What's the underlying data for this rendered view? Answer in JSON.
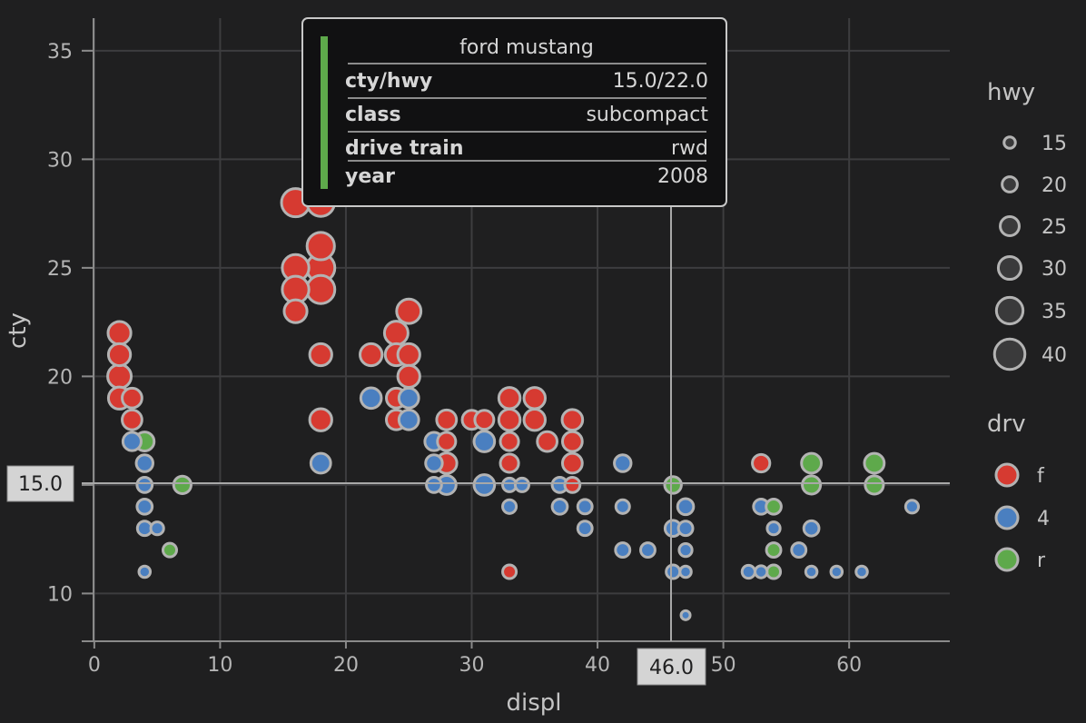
{
  "colors": {
    "f": "#d63a31",
    "4": "#4a7fc0",
    "r": "#5ea94b",
    "outline": "#b3b3b3",
    "grid": "#3d3d3f",
    "background": "#1f1f20"
  },
  "chart_data": {
    "type": "scatter",
    "xlabel": "displ",
    "ylabel": "cty",
    "xlim": [
      -1,
      68
    ],
    "ylim": [
      7.8,
      36.5
    ],
    "x_ticks": [
      0,
      10,
      20,
      30,
      40,
      50,
      60
    ],
    "y_ticks": [
      10,
      15,
      20,
      25,
      30,
      35
    ],
    "grid": true,
    "legend_position": "right",
    "size_legend": {
      "title": "hwy",
      "values": [
        15,
        20,
        25,
        30,
        35,
        40
      ]
    },
    "color_legend": {
      "title": "drv",
      "values": [
        "f",
        "4",
        "r"
      ]
    },
    "points": [
      {
        "x": 2,
        "y": 22,
        "hwy": 30,
        "drv": "f"
      },
      {
        "x": 2,
        "y": 21,
        "hwy": 29,
        "drv": "f"
      },
      {
        "x": 2,
        "y": 20,
        "hwy": 31,
        "drv": "f"
      },
      {
        "x": 2,
        "y": 19,
        "hwy": 29,
        "drv": "f"
      },
      {
        "x": 3,
        "y": 19,
        "hwy": 26,
        "drv": "f"
      },
      {
        "x": 3,
        "y": 18,
        "hwy": 26,
        "drv": "f"
      },
      {
        "x": 3,
        "y": 17,
        "hwy": 24,
        "drv": "4"
      },
      {
        "x": 4,
        "y": 17,
        "hwy": 25,
        "drv": "r"
      },
      {
        "x": 4,
        "y": 16,
        "hwy": 22,
        "drv": "4"
      },
      {
        "x": 4,
        "y": 15,
        "hwy": 20,
        "drv": "4"
      },
      {
        "x": 4,
        "y": 14,
        "hwy": 20,
        "drv": "4"
      },
      {
        "x": 4,
        "y": 13,
        "hwy": 19,
        "drv": "4"
      },
      {
        "x": 4,
        "y": 11,
        "hwy": 15,
        "drv": "4"
      },
      {
        "x": 5,
        "y": 13,
        "hwy": 17,
        "drv": "4"
      },
      {
        "x": 6,
        "y": 12,
        "hwy": 18,
        "drv": "r"
      },
      {
        "x": 7,
        "y": 15,
        "hwy": 23,
        "drv": "r"
      },
      {
        "x": 16,
        "y": 28,
        "hwy": 37,
        "drv": "f"
      },
      {
        "x": 16,
        "y": 25,
        "hwy": 35,
        "drv": "f"
      },
      {
        "x": 16,
        "y": 24,
        "hwy": 35,
        "drv": "f"
      },
      {
        "x": 16,
        "y": 23,
        "hwy": 30,
        "drv": "f"
      },
      {
        "x": 18,
        "y": 28,
        "hwy": 36,
        "drv": "f"
      },
      {
        "x": 18,
        "y": 26,
        "hwy": 36,
        "drv": "f"
      },
      {
        "x": 18,
        "y": 25,
        "hwy": 37,
        "drv": "f"
      },
      {
        "x": 18,
        "y": 24,
        "hwy": 37,
        "drv": "f"
      },
      {
        "x": 18,
        "y": 21,
        "hwy": 29,
        "drv": "f"
      },
      {
        "x": 18,
        "y": 18,
        "hwy": 29,
        "drv": "f"
      },
      {
        "x": 18,
        "y": 16,
        "hwy": 26,
        "drv": "4"
      },
      {
        "x": 22,
        "y": 21,
        "hwy": 29,
        "drv": "f"
      },
      {
        "x": 22,
        "y": 19,
        "hwy": 27,
        "drv": "4"
      },
      {
        "x": 24,
        "y": 22,
        "hwy": 31,
        "drv": "f"
      },
      {
        "x": 24,
        "y": 21,
        "hwy": 29,
        "drv": "f"
      },
      {
        "x": 24,
        "y": 19,
        "hwy": 26,
        "drv": "f"
      },
      {
        "x": 24,
        "y": 18,
        "hwy": 26,
        "drv": "f"
      },
      {
        "x": 25,
        "y": 23,
        "hwy": 32,
        "drv": "f"
      },
      {
        "x": 25,
        "y": 21,
        "hwy": 29,
        "drv": "f"
      },
      {
        "x": 25,
        "y": 20,
        "hwy": 29,
        "drv": "f"
      },
      {
        "x": 25,
        "y": 19,
        "hwy": 26,
        "drv": "4"
      },
      {
        "x": 25,
        "y": 18,
        "hwy": 26,
        "drv": "4"
      },
      {
        "x": 27,
        "y": 17,
        "hwy": 24,
        "drv": "4"
      },
      {
        "x": 27,
        "y": 16,
        "hwy": 22,
        "drv": "4"
      },
      {
        "x": 27,
        "y": 15,
        "hwy": 20,
        "drv": "4"
      },
      {
        "x": 28,
        "y": 18,
        "hwy": 26,
        "drv": "f"
      },
      {
        "x": 28,
        "y": 17,
        "hwy": 24,
        "drv": "f"
      },
      {
        "x": 28,
        "y": 16,
        "hwy": 27,
        "drv": "f"
      },
      {
        "x": 28,
        "y": 15,
        "hwy": 25,
        "drv": "4"
      },
      {
        "x": 30,
        "y": 18,
        "hwy": 25,
        "drv": "f"
      },
      {
        "x": 31,
        "y": 18,
        "hwy": 25,
        "drv": "f"
      },
      {
        "x": 31,
        "y": 17,
        "hwy": 27,
        "drv": "4"
      },
      {
        "x": 31,
        "y": 15,
        "hwy": 27,
        "drv": "4"
      },
      {
        "x": 33,
        "y": 19,
        "hwy": 28,
        "drv": "f"
      },
      {
        "x": 33,
        "y": 18,
        "hwy": 28,
        "drv": "f"
      },
      {
        "x": 33,
        "y": 17,
        "hwy": 24,
        "drv": "f"
      },
      {
        "x": 33,
        "y": 16,
        "hwy": 24,
        "drv": "f"
      },
      {
        "x": 33,
        "y": 15,
        "hwy": 18,
        "drv": "4"
      },
      {
        "x": 33,
        "y": 14,
        "hwy": 18,
        "drv": "4"
      },
      {
        "x": 33,
        "y": 11,
        "hwy": 18,
        "drv": "f"
      },
      {
        "x": 34,
        "y": 15,
        "hwy": 18,
        "drv": "4"
      },
      {
        "x": 35,
        "y": 19,
        "hwy": 28,
        "drv": "f"
      },
      {
        "x": 35,
        "y": 18,
        "hwy": 28,
        "drv": "f"
      },
      {
        "x": 36,
        "y": 17,
        "hwy": 26,
        "drv": "f"
      },
      {
        "x": 37,
        "y": 15,
        "hwy": 20,
        "drv": "4"
      },
      {
        "x": 37,
        "y": 14,
        "hwy": 20,
        "drv": "4"
      },
      {
        "x": 38,
        "y": 18,
        "hwy": 27,
        "drv": "f"
      },
      {
        "x": 38,
        "y": 17,
        "hwy": 26,
        "drv": "f"
      },
      {
        "x": 38,
        "y": 16,
        "hwy": 26,
        "drv": "f"
      },
      {
        "x": 38,
        "y": 15,
        "hwy": 20,
        "drv": "f"
      },
      {
        "x": 39,
        "y": 14,
        "hwy": 19,
        "drv": "4"
      },
      {
        "x": 39,
        "y": 13,
        "hwy": 19,
        "drv": "4"
      },
      {
        "x": 42,
        "y": 16,
        "hwy": 22,
        "drv": "4"
      },
      {
        "x": 42,
        "y": 14,
        "hwy": 18,
        "drv": "4"
      },
      {
        "x": 42,
        "y": 12,
        "hwy": 19,
        "drv": "4"
      },
      {
        "x": 44,
        "y": 12,
        "hwy": 19,
        "drv": "4"
      },
      {
        "x": 46,
        "y": 15,
        "hwy": 22,
        "drv": "r"
      },
      {
        "x": 46,
        "y": 13,
        "hwy": 21,
        "drv": "4"
      },
      {
        "x": 46,
        "y": 11,
        "hwy": 18,
        "drv": "4"
      },
      {
        "x": 47,
        "y": 14,
        "hwy": 21,
        "drv": "4"
      },
      {
        "x": 47,
        "y": 13,
        "hwy": 19,
        "drv": "4"
      },
      {
        "x": 47,
        "y": 12,
        "hwy": 17,
        "drv": "4"
      },
      {
        "x": 47,
        "y": 11,
        "hwy": 15,
        "drv": "4"
      },
      {
        "x": 47,
        "y": 9,
        "hwy": 12,
        "drv": "4"
      },
      {
        "x": 52,
        "y": 11,
        "hwy": 17,
        "drv": "4"
      },
      {
        "x": 53,
        "y": 16,
        "hwy": 23,
        "drv": "f"
      },
      {
        "x": 53,
        "y": 14,
        "hwy": 20,
        "drv": "4"
      },
      {
        "x": 53,
        "y": 11,
        "hwy": 16,
        "drv": "4"
      },
      {
        "x": 54,
        "y": 14,
        "hwy": 20,
        "drv": "r"
      },
      {
        "x": 54,
        "y": 13,
        "hwy": 17,
        "drv": "4"
      },
      {
        "x": 54,
        "y": 12,
        "hwy": 19,
        "drv": "r"
      },
      {
        "x": 54,
        "y": 11,
        "hwy": 18,
        "drv": "r"
      },
      {
        "x": 56,
        "y": 12,
        "hwy": 19,
        "drv": "4"
      },
      {
        "x": 57,
        "y": 16,
        "hwy": 26,
        "drv": "r"
      },
      {
        "x": 57,
        "y": 15,
        "hwy": 24,
        "drv": "r"
      },
      {
        "x": 57,
        "y": 13,
        "hwy": 20,
        "drv": "4"
      },
      {
        "x": 57,
        "y": 11,
        "hwy": 15,
        "drv": "4"
      },
      {
        "x": 59,
        "y": 11,
        "hwy": 15,
        "drv": "4"
      },
      {
        "x": 61,
        "y": 11,
        "hwy": 15,
        "drv": "4"
      },
      {
        "x": 62,
        "y": 16,
        "hwy": 26,
        "drv": "r"
      },
      {
        "x": 62,
        "y": 15,
        "hwy": 24,
        "drv": "r"
      },
      {
        "x": 65,
        "y": 14,
        "hwy": 17,
        "drv": "4"
      }
    ],
    "crosshair": {
      "x_label": "46.0",
      "y_label": "15.0"
    },
    "tooltip": {
      "title": "ford mustang",
      "rows": [
        {
          "key": "cty/hwy",
          "value": "15.0/22.0"
        },
        {
          "key": "class",
          "value": "subcompact"
        },
        {
          "key": "drive train",
          "value": "rwd"
        },
        {
          "key": "year",
          "value": "2008"
        }
      ]
    }
  }
}
